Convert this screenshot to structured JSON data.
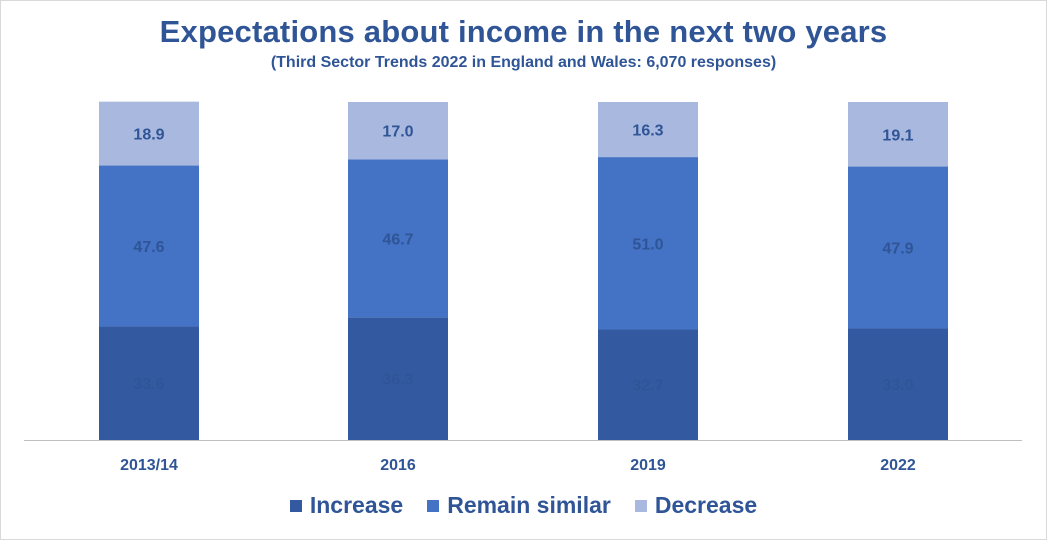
{
  "chart_data": {
    "type": "bar",
    "stacked": true,
    "title": "Expectations about income in the next two years",
    "subtitle": "(Third Sector Trends 2022 in England and Wales: 6,070 responses)",
    "categories": [
      "2013/14",
      "2016",
      "2019",
      "2022"
    ],
    "series": [
      {
        "name": "Increase",
        "color": "#335aa1",
        "values": [
          33.6,
          36.3,
          32.7,
          33.0
        ]
      },
      {
        "name": "Remain similar",
        "color": "#4472c4",
        "values": [
          47.6,
          46.7,
          51.0,
          47.9
        ]
      },
      {
        "name": "Decrease",
        "color": "#a9b8de",
        "values": [
          18.9,
          17.0,
          16.3,
          19.1
        ]
      }
    ],
    "ylim": [
      0,
      100
    ],
    "grid": false,
    "data_labels": true,
    "label_color": "#2f5597",
    "axis_color": "#bfbfbf",
    "legend_position": "bottom"
  }
}
